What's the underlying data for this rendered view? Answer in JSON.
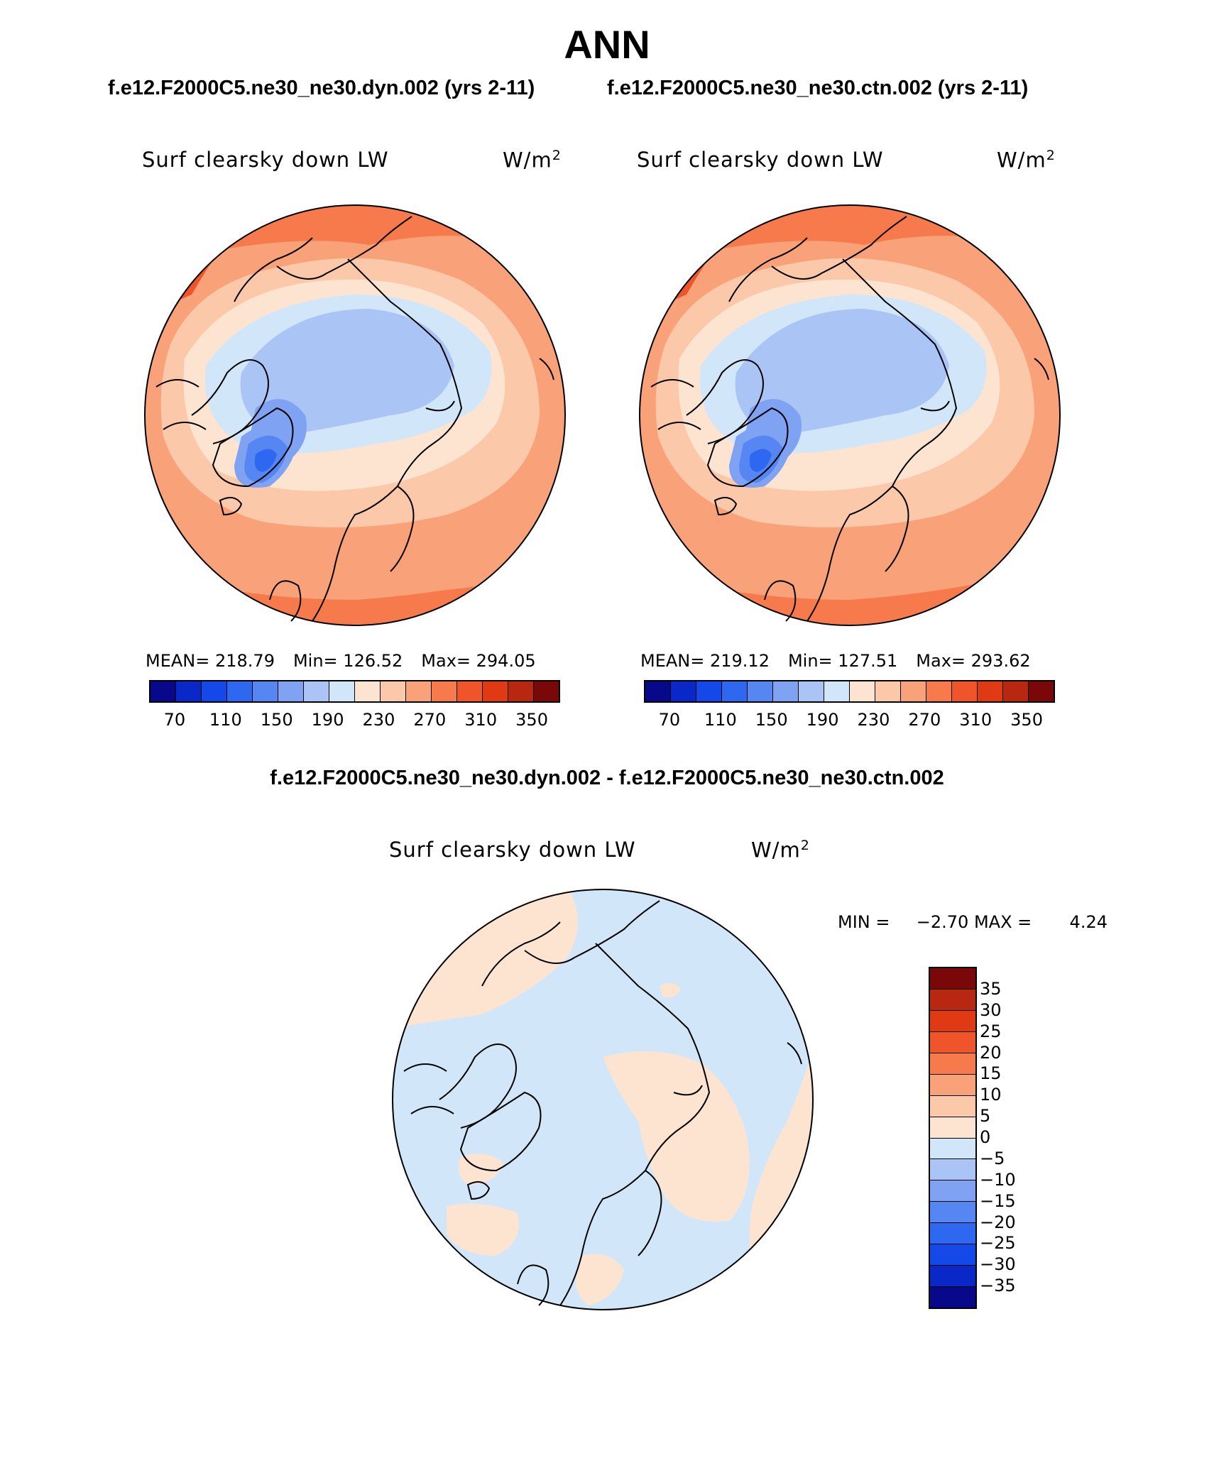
{
  "title": "ANN",
  "case_titles": {
    "left": "f.e12.F2000C5.ne30_ne30.dyn.002 (yrs 2-11)",
    "right": "f.e12.F2000C5.ne30_ne30.ctn.002 (yrs 2-11)"
  },
  "diff_title": "f.e12.F2000C5.ne30_ne30.dyn.002 - f.e12.F2000C5.ne30_ne30.ctn.002",
  "panels": {
    "left": {
      "variable": "Surf clearsky down LW",
      "units_base": "W/m",
      "units_exp": "2",
      "mean": "MEAN= 218.79",
      "min": "Min= 126.52",
      "max": "Max= 294.05"
    },
    "right": {
      "variable": "Surf clearsky down LW",
      "units_base": "W/m",
      "units_exp": "2",
      "mean": "MEAN= 219.12",
      "min": "Min= 127.51",
      "max": "Max= 293.62"
    },
    "diff": {
      "variable": "Surf clearsky down LW",
      "units_base": "W/m",
      "units_exp": "2",
      "min_label": "MIN =",
      "min_value": "−2.70",
      "max_label": "MAX =",
      "max_value": "4.24"
    }
  },
  "colors": {
    "abs_scale": [
      "#08088a",
      "#0a28c8",
      "#1448e8",
      "#2e68f0",
      "#5686f2",
      "#7fa2f2",
      "#aac4f5",
      "#d2e6fa",
      "#fde4d0",
      "#fbc8aa",
      "#f9a27a",
      "#f67a4c",
      "#f0542a",
      "#e03a14",
      "#b82810",
      "#7a0808"
    ],
    "diff_scale_top_to_bottom": [
      "#7a0808",
      "#b82810",
      "#e03a14",
      "#f0542a",
      "#f67a4c",
      "#f9a27a",
      "#fbc8aa",
      "#fde4d0",
      "#d2e6fa",
      "#aac4f5",
      "#7fa2f2",
      "#5686f2",
      "#2e68f0",
      "#1448e8",
      "#0a28c8",
      "#08088a"
    ],
    "land_line": "#000000"
  },
  "chart_data": [
    {
      "type": "heatmap",
      "projection": "north polar stereographic",
      "title": "Surf clearsky down LW",
      "case": "f.e12.F2000C5.ne30_ne30.dyn.002 (yrs 2-11)",
      "units": "W/m2",
      "mean": 218.79,
      "min": 126.52,
      "max": 294.05,
      "colorbar_levels": [
        70,
        90,
        110,
        130,
        150,
        170,
        190,
        210,
        230,
        250,
        270,
        290,
        310,
        330,
        350
      ],
      "colorbar_tick_labels": [
        "70",
        "110",
        "150",
        "190",
        "230",
        "270",
        "310",
        "350"
      ]
    },
    {
      "type": "heatmap",
      "projection": "north polar stereographic",
      "title": "Surf clearsky down LW",
      "case": "f.e12.F2000C5.ne30_ne30.ctn.002 (yrs 2-11)",
      "units": "W/m2",
      "mean": 219.12,
      "min": 127.51,
      "max": 293.62,
      "colorbar_levels": [
        70,
        90,
        110,
        130,
        150,
        170,
        190,
        210,
        230,
        250,
        270,
        290,
        310,
        330,
        350
      ],
      "colorbar_tick_labels": [
        "70",
        "110",
        "150",
        "190",
        "230",
        "270",
        "310",
        "350"
      ]
    },
    {
      "type": "heatmap",
      "projection": "north polar stereographic",
      "title": "Surf clearsky down LW",
      "case": "f.e12.F2000C5.ne30_ne30.dyn.002 - f.e12.F2000C5.ne30_ne30.ctn.002",
      "units": "W/m2",
      "min": -2.7,
      "max": 4.24,
      "colorbar_levels": [
        35,
        30,
        25,
        20,
        15,
        10,
        5,
        0,
        -5,
        -10,
        -15,
        -20,
        -25,
        -30,
        -35
      ],
      "colorbar_tick_labels": [
        "35",
        "30",
        "25",
        "20",
        "15",
        "10",
        "5",
        "0",
        "−5",
        "−10",
        "−15",
        "−20",
        "−25",
        "−30",
        "−35"
      ]
    }
  ]
}
